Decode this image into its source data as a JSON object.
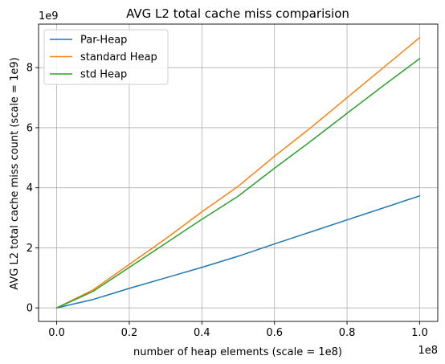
{
  "chart_data": {
    "type": "line",
    "title": "AVG L2 total cache miss comparision",
    "xlabel": "number of heap elements (scale = 1e8)",
    "ylabel": "AVG L2 total cache miss count (scale = 1e9)",
    "x_offset_label": "1e8",
    "y_offset_label": "1e9",
    "xlim": [
      -0.05,
      1.05
    ],
    "ylim": [
      -0.45,
      9.45
    ],
    "xticks": [
      0.0,
      0.2,
      0.4,
      0.6,
      0.8,
      1.0
    ],
    "xtick_labels": [
      "0.0",
      "0.2",
      "0.4",
      "0.6",
      "0.8",
      "1.0"
    ],
    "yticks": [
      0,
      2,
      4,
      6,
      8
    ],
    "ytick_labels": [
      "0",
      "2",
      "4",
      "6",
      "8"
    ],
    "grid": true,
    "legend_position": "top-left",
    "x": [
      0.0,
      0.1,
      0.2,
      0.3,
      0.4,
      0.5,
      0.6,
      0.7,
      0.8,
      0.9,
      1.0
    ],
    "series": [
      {
        "name": "Par-Heap",
        "color": "#1f77b4",
        "values": [
          0.0,
          0.28,
          0.65,
          1.0,
          1.35,
          1.72,
          2.13,
          2.53,
          2.93,
          3.33,
          3.73
        ]
      },
      {
        "name": "standard Heap",
        "color": "#ff7f0e",
        "values": [
          0.0,
          0.6,
          1.45,
          2.3,
          3.2,
          4.05,
          5.05,
          6.0,
          7.0,
          8.0,
          9.0
        ]
      },
      {
        "name": "std Heap",
        "color": "#2ca02c",
        "values": [
          0.0,
          0.55,
          1.35,
          2.15,
          2.95,
          3.72,
          4.65,
          5.55,
          6.48,
          7.4,
          8.3
        ]
      }
    ]
  }
}
